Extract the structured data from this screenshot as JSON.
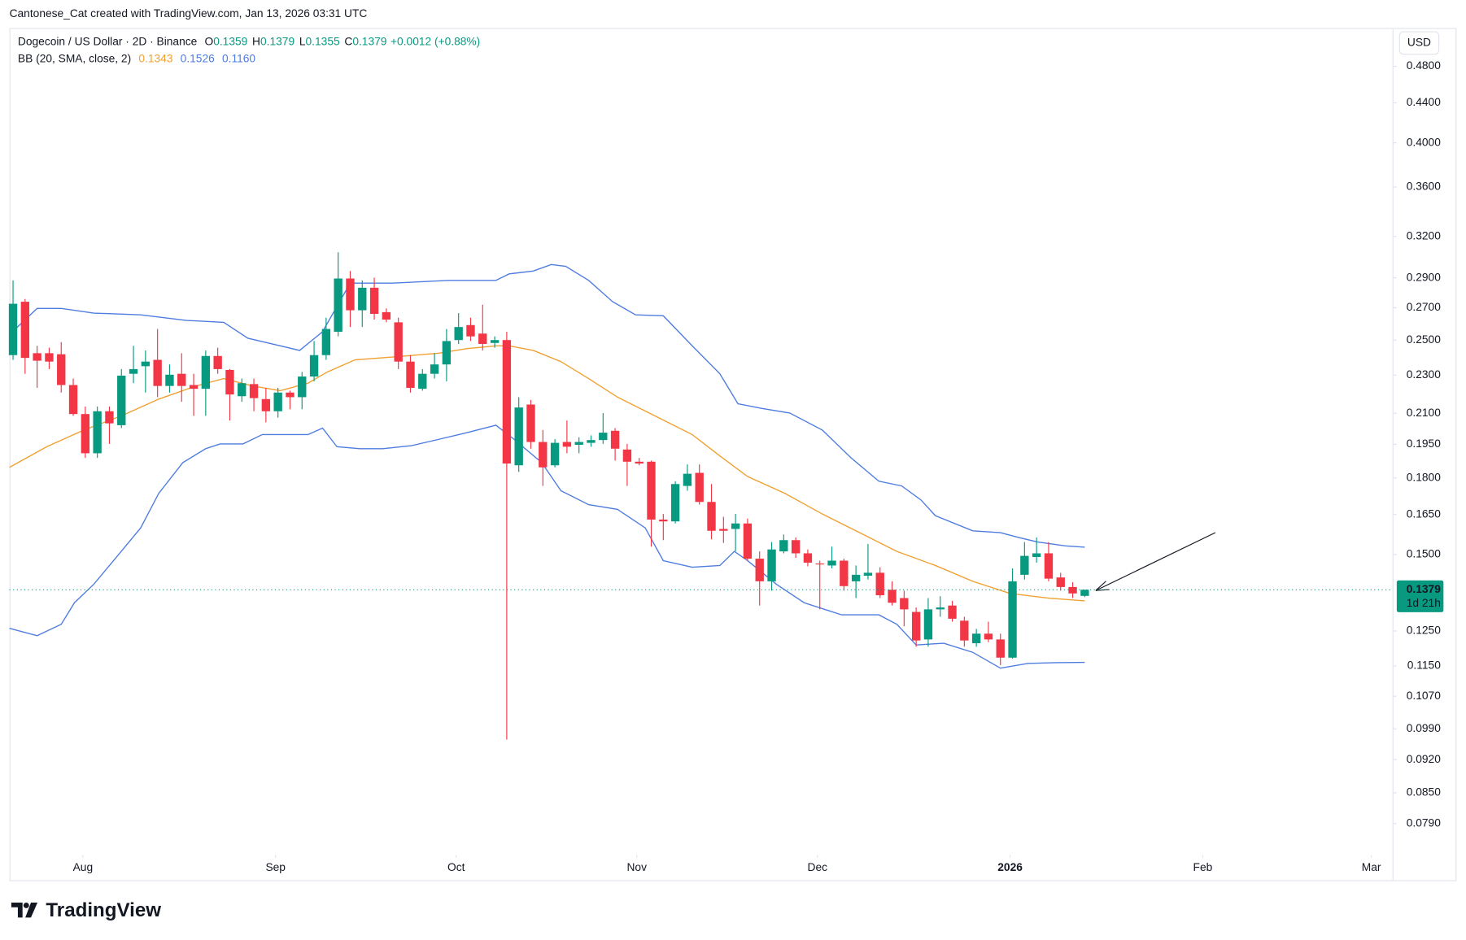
{
  "watermark": "Cantonese_Cat created with TradingView.com, Jan 13, 2026 03:31 UTC",
  "logo": "TradingView",
  "currency": "USD",
  "chart_data": {
    "type": "candlestick",
    "symbol": "Dogecoin / US Dollar · 2D · Binance",
    "ohlc_legend": {
      "labels": [
        "O",
        "H",
        "L",
        "C"
      ],
      "values": [
        0.1359,
        0.1379,
        0.1355,
        0.1379
      ],
      "change": "+0.0012 (+0.88%)"
    },
    "indicator": {
      "name": "BB (20, SMA, close, 2)",
      "values": [
        0.1343,
        0.1526,
        {
          "value": 0.116,
          "label": "0.1160"
        }
      ]
    },
    "up_color": "#089981",
    "down_color": "#f23645",
    "log_y": true,
    "grid": false,
    "ylim": [
      0.0733,
      0.5235
    ],
    "xlim": [
      -0.3,
      114.6
    ],
    "yticks": [
      {
        "value": 0.48,
        "label": "0.4800"
      },
      {
        "value": 0.44,
        "label": "0.4400"
      },
      {
        "value": 0.4,
        "label": "0.4000"
      },
      {
        "value": 0.36,
        "label": "0.3600"
      },
      {
        "value": 0.32,
        "label": "0.3200"
      },
      {
        "value": 0.29,
        "label": "0.2900"
      },
      {
        "value": 0.27,
        "label": "0.2700"
      },
      {
        "value": 0.25,
        "label": "0.2500"
      },
      {
        "value": 0.23,
        "label": "0.2300"
      },
      {
        "value": 0.21,
        "label": "0.2100"
      },
      {
        "value": 0.195,
        "label": "0.1950"
      },
      {
        "value": 0.18,
        "label": "0.1800"
      },
      {
        "value": 0.165,
        "label": "0.1650"
      },
      {
        "value": 0.15,
        "label": "0.1500"
      },
      {
        "value": 0.125,
        "label": "0.1250"
      },
      {
        "value": 0.115,
        "label": "0.1150"
      },
      {
        "value": 0.107,
        "label": "0.1070"
      },
      {
        "value": 0.099,
        "label": "0.0990"
      },
      {
        "value": 0.092,
        "label": "0.0920"
      },
      {
        "value": 0.085,
        "label": "0.0850"
      },
      {
        "value": 0.079,
        "label": "0.0790"
      }
    ],
    "xticks": [
      {
        "value": 5.8,
        "label": "Aug"
      },
      {
        "value": 21.8,
        "label": "Sep"
      },
      {
        "value": 36.8,
        "label": "Oct"
      },
      {
        "value": 51.8,
        "label": "Nov"
      },
      {
        "value": 66.8,
        "label": "Dec"
      },
      {
        "value": 82.8,
        "label": "2026"
      },
      {
        "value": 98.8,
        "label": "Feb"
      },
      {
        "value": 112.8,
        "label": "Mar"
      }
    ],
    "last_price": 0.1379,
    "countdown": "1d 21h",
    "ohlc": [
      [
        0.2412,
        0.2882,
        0.2385,
        0.2726
      ],
      [
        0.2739,
        0.2757,
        0.2307,
        0.2396
      ],
      [
        0.2423,
        0.2466,
        0.2231,
        0.238
      ],
      [
        0.2423,
        0.2455,
        0.2333,
        0.2375
      ],
      [
        0.2417,
        0.2488,
        0.2206,
        0.2246
      ],
      [
        0.2246,
        0.2281,
        0.2087,
        0.2096
      ],
      [
        0.2096,
        0.2134,
        0.1888,
        0.1909
      ],
      [
        0.1909,
        0.2134,
        0.1888,
        0.211
      ],
      [
        0.211,
        0.2134,
        0.1952,
        0.205
      ],
      [
        0.2041,
        0.2333,
        0.2027,
        0.2297
      ],
      [
        0.2307,
        0.2466,
        0.2256,
        0.2333
      ],
      [
        0.2349,
        0.2439,
        0.2206,
        0.2375
      ],
      [
        0.2385,
        0.2567,
        0.2182,
        0.2241
      ],
      [
        0.2241,
        0.2359,
        0.2206,
        0.2302
      ],
      [
        0.2307,
        0.2423,
        0.2158,
        0.2241
      ],
      [
        0.2246,
        0.2307,
        0.2087,
        0.2226
      ],
      [
        0.2226,
        0.2439,
        0.2087,
        0.2407
      ],
      [
        0.2407,
        0.2455,
        0.2307,
        0.2333
      ],
      [
        0.2328,
        0.2333,
        0.2064,
        0.2196
      ],
      [
        0.2187,
        0.2281,
        0.2158,
        0.2256
      ],
      [
        0.2251,
        0.2281,
        0.211,
        0.2177
      ],
      [
        0.2172,
        0.2231,
        0.2055,
        0.211
      ],
      [
        0.211,
        0.2231,
        0.2078,
        0.2206
      ],
      [
        0.2206,
        0.2216,
        0.212,
        0.2182
      ],
      [
        0.2182,
        0.2317,
        0.212,
        0.2292
      ],
      [
        0.2292,
        0.2494,
        0.2266,
        0.2412
      ],
      [
        0.2412,
        0.2637,
        0.2385,
        0.2567
      ],
      [
        0.255,
        0.3082,
        0.2522,
        0.2895
      ],
      [
        0.2895,
        0.2947,
        0.2579,
        0.2684
      ],
      [
        0.2684,
        0.2882,
        0.2579,
        0.2832
      ],
      [
        0.2832,
        0.2901,
        0.2625,
        0.2661
      ],
      [
        0.2672,
        0.2696,
        0.2608,
        0.2625
      ],
      [
        0.2608,
        0.2637,
        0.2333,
        0.2375
      ],
      [
        0.2375,
        0.2412,
        0.2206,
        0.2231
      ],
      [
        0.2226,
        0.2333,
        0.2216,
        0.2307
      ],
      [
        0.2307,
        0.2423,
        0.2281,
        0.2359
      ],
      [
        0.2359,
        0.2567,
        0.2266,
        0.2494
      ],
      [
        0.25,
        0.2666,
        0.2477,
        0.2579
      ],
      [
        0.2591,
        0.2637,
        0.2494,
        0.2522
      ],
      [
        0.2539,
        0.272,
        0.2439,
        0.2477
      ],
      [
        0.2483,
        0.2522,
        0.2455,
        0.25
      ],
      [
        0.25,
        0.255,
        0.0965,
        0.1863
      ],
      [
        0.1855,
        0.2182,
        0.1826,
        0.2129
      ],
      [
        0.2144,
        0.2168,
        0.193,
        0.1961
      ],
      [
        0.1961,
        0.2018,
        0.1766,
        0.1846
      ],
      [
        0.1855,
        0.1974,
        0.1846,
        0.1957
      ],
      [
        0.1961,
        0.2064,
        0.1909,
        0.1939
      ],
      [
        0.1948,
        0.1983,
        0.1909,
        0.1961
      ],
      [
        0.1957,
        0.1992,
        0.1939,
        0.197
      ],
      [
        0.197,
        0.2101,
        0.1952,
        0.2005
      ],
      [
        0.2014,
        0.2027,
        0.1876,
        0.193
      ],
      [
        0.1926,
        0.1952,
        0.1766,
        0.1871
      ],
      [
        0.1871,
        0.1888,
        0.1855,
        0.1863
      ],
      [
        0.1871,
        0.1876,
        0.1528,
        0.163
      ],
      [
        0.163,
        0.1652,
        0.1552,
        0.1623
      ],
      [
        0.1623,
        0.1786,
        0.1615,
        0.1774
      ],
      [
        0.1766,
        0.1859,
        0.1746,
        0.1818
      ],
      [
        0.1822,
        0.1859,
        0.1689,
        0.17
      ],
      [
        0.17,
        0.1774,
        0.1555,
        0.1587
      ],
      [
        0.1594,
        0.1641,
        0.1542,
        0.1587
      ],
      [
        0.1594,
        0.1652,
        0.1511,
        0.1615
      ],
      [
        0.1615,
        0.1634,
        0.1478,
        0.1485
      ],
      [
        0.1485,
        0.1511,
        0.1328,
        0.1407
      ],
      [
        0.1407,
        0.1545,
        0.1376,
        0.1518
      ],
      [
        0.1511,
        0.1573,
        0.1504,
        0.1552
      ],
      [
        0.1552,
        0.1562,
        0.1488,
        0.1504
      ],
      [
        0.1504,
        0.1518,
        0.1458,
        0.1471
      ],
      [
        0.1468,
        0.1478,
        0.1316,
        0.1465
      ],
      [
        0.1461,
        0.1528,
        0.1451,
        0.1478
      ],
      [
        0.1478,
        0.1485,
        0.1376,
        0.1391
      ],
      [
        0.1407,
        0.1461,
        0.1352,
        0.1429
      ],
      [
        0.1426,
        0.1538,
        0.1413,
        0.1436
      ],
      [
        0.1436,
        0.1455,
        0.1352,
        0.1361
      ],
      [
        0.1379,
        0.1407,
        0.1328,
        0.1337
      ],
      [
        0.1352,
        0.1376,
        0.1264,
        0.1316
      ],
      [
        0.1308,
        0.1322,
        0.1204,
        0.1222
      ],
      [
        0.1225,
        0.1352,
        0.1204,
        0.1316
      ],
      [
        0.1316,
        0.1358,
        0.1293,
        0.1322
      ],
      [
        0.1328,
        0.1343,
        0.1278,
        0.1287
      ],
      [
        0.1281,
        0.1293,
        0.1204,
        0.1222
      ],
      [
        0.1214,
        0.1256,
        0.1204,
        0.1242
      ],
      [
        0.1242,
        0.1278,
        0.1217,
        0.1225
      ],
      [
        0.1225,
        0.1242,
        0.1152,
        0.1173
      ],
      [
        0.1173,
        0.1451,
        0.117,
        0.1407
      ],
      [
        0.1429,
        0.1545,
        0.1413,
        0.1495
      ],
      [
        0.1491,
        0.1562,
        0.1471,
        0.1504
      ],
      [
        0.1504,
        0.1545,
        0.1407,
        0.1416
      ],
      [
        0.142,
        0.1436,
        0.1376,
        0.1388
      ],
      [
        0.1388,
        0.1404,
        0.1352,
        0.1367
      ],
      [
        0.1359,
        0.1379,
        0.1355,
        0.1379
      ]
    ],
    "series": [
      {
        "color": "#f0a030",
        "x": [
          -0.3,
          2.8,
          5.9,
          9.0,
          12.1,
          15.2,
          17.5,
          19.9,
          22.2,
          24.5,
          26.1,
          28.4,
          31.5,
          35.4,
          37.7,
          40.1,
          41.2,
          43.2,
          45.5,
          47.8,
          50.2,
          53.3,
          56.4,
          58.7,
          61.0,
          64.1,
          67.2,
          70.3,
          73.4,
          76.6,
          79.7,
          82.8,
          85.9,
          89
        ],
        "values": [
          0.1846,
          0.1939,
          0.2018,
          0.2087,
          0.2172,
          0.2241,
          0.2281,
          0.2241,
          0.2216,
          0.2256,
          0.2317,
          0.2385,
          0.2401,
          0.2423,
          0.245,
          0.2466,
          0.2466,
          0.2439,
          0.2375,
          0.2281,
          0.2182,
          0.2087,
          0.1996,
          0.1897,
          0.1806,
          0.1735,
          0.1652,
          0.158,
          0.1511,
          0.1461,
          0.1407,
          0.1367,
          0.1352,
          0.1343
        ]
      },
      {
        "color": "#4f7ce0",
        "x": [
          -0.3,
          2.0,
          4.0,
          6.7,
          10.6,
          14.4,
          17.5,
          19.5,
          22.2,
          23.8,
          25.7,
          28.0,
          31.5,
          36.2,
          40.1,
          41.2,
          43.2,
          44.7,
          45.9,
          47.8,
          49.8,
          51.7,
          54.0,
          56.4,
          58.7,
          60.2,
          62.2,
          64.5,
          67.2,
          69.6,
          71.9,
          73.8,
          75.4,
          76.6,
          79.7,
          82.0,
          83.5,
          85.1,
          87.4,
          89
        ],
        "values": [
          0.2533,
          0.2696,
          0.2696,
          0.2666,
          0.2655,
          0.262,
          0.2608,
          0.2511,
          0.2466,
          0.2439,
          0.255,
          0.2863,
          0.2863,
          0.2882,
          0.2882,
          0.2927,
          0.2947,
          0.2993,
          0.298,
          0.2882,
          0.2739,
          0.2655,
          0.2649,
          0.2466,
          0.2307,
          0.2148,
          0.2124,
          0.2101,
          0.2018,
          0.1888,
          0.1786,
          0.1766,
          0.1708,
          0.1645,
          0.1587,
          0.158,
          0.1562,
          0.1545,
          0.1531,
          0.1526
        ]
      },
      {
        "color": "#4f7ce0",
        "x": [
          -0.3,
          2.0,
          4.0,
          5.1,
          6.7,
          8.6,
          10.6,
          12.1,
          14.1,
          16.0,
          17.2,
          19.1,
          20.7,
          22.2,
          24.5,
          25.7,
          26.9,
          28.8,
          30.7,
          33.1,
          35.4,
          37.7,
          40.1,
          41.6,
          43.9,
          45.5,
          47.8,
          50.2,
          52.5,
          54.0,
          56.4,
          58.7,
          59.9,
          61.0,
          63.4,
          65.7,
          68.8,
          71.9,
          73.4,
          75.0,
          77.3,
          79.7,
          82.0,
          84.3,
          86.6,
          89
        ],
        "values": [
          0.1258,
          0.1236,
          0.127,
          0.1337,
          0.1397,
          0.1491,
          0.1598,
          0.1735,
          0.1867,
          0.193,
          0.1952,
          0.1952,
          0.1996,
          0.1996,
          0.1996,
          0.2027,
          0.1939,
          0.193,
          0.193,
          0.1944,
          0.1974,
          0.2005,
          0.2041,
          0.1974,
          0.1867,
          0.1746,
          0.1689,
          0.167,
          0.1598,
          0.1478,
          0.1455,
          0.1461,
          0.1511,
          0.1478,
          0.1397,
          0.1337,
          0.1299,
          0.1299,
          0.127,
          0.1209,
          0.1214,
          0.1188,
          0.1144,
          0.1157,
          0.1159,
          0.116
        ]
      }
    ]
  }
}
